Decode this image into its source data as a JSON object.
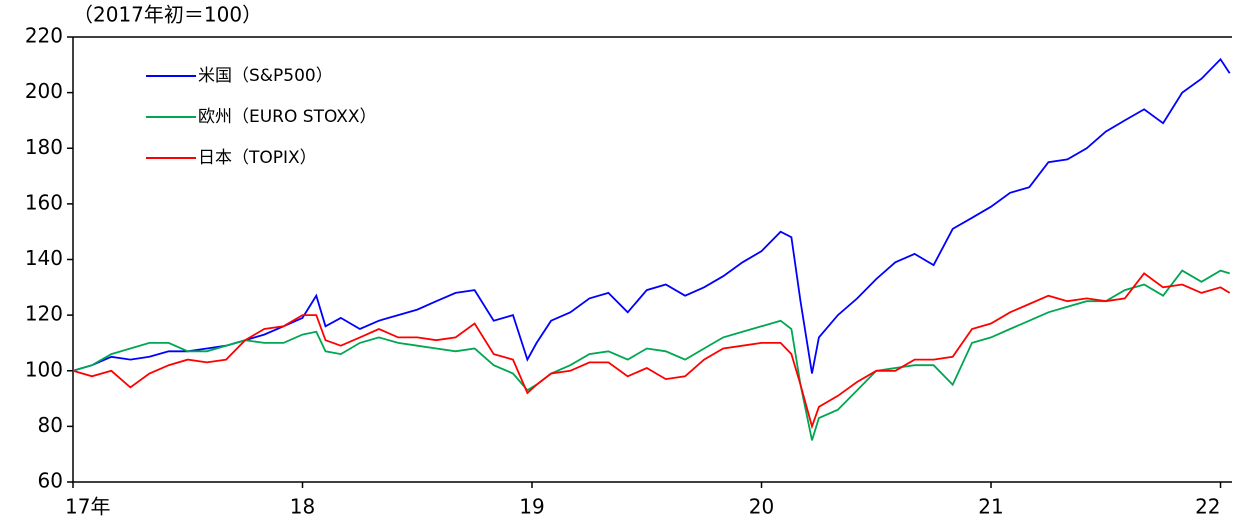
{
  "chart_data": {
    "type": "line",
    "y_axis_label": "（2017年初＝100）",
    "x": [
      17.0,
      17.083,
      17.167,
      17.25,
      17.333,
      17.417,
      17.5,
      17.583,
      17.667,
      17.75,
      17.833,
      17.917,
      18.0,
      18.06,
      18.1,
      18.167,
      18.25,
      18.333,
      18.417,
      18.5,
      18.583,
      18.667,
      18.75,
      18.833,
      18.917,
      18.98,
      19.02,
      19.083,
      19.167,
      19.25,
      19.333,
      19.417,
      19.5,
      19.583,
      19.667,
      19.75,
      19.833,
      19.917,
      20.0,
      20.083,
      20.13,
      20.17,
      20.22,
      20.25,
      20.333,
      20.417,
      20.5,
      20.583,
      20.667,
      20.75,
      20.833,
      20.917,
      21.0,
      21.083,
      21.167,
      21.25,
      21.333,
      21.417,
      21.5,
      21.583,
      21.667,
      21.75,
      21.833,
      21.917,
      22.0,
      22.04
    ],
    "series": [
      {
        "name": "米国（S&P500）",
        "color": "#0000ff",
        "values": [
          100,
          102,
          105,
          104,
          105,
          107,
          107,
          108,
          109,
          111,
          113,
          116,
          119,
          127,
          116,
          119,
          115,
          118,
          120,
          122,
          125,
          128,
          129,
          118,
          120,
          104,
          110,
          118,
          121,
          126,
          128,
          121,
          129,
          131,
          127,
          130,
          134,
          139,
          143,
          150,
          148,
          125,
          99,
          112,
          120,
          126,
          133,
          139,
          142,
          138,
          151,
          155,
          159,
          164,
          166,
          175,
          176,
          180,
          186,
          190,
          194,
          189,
          200,
          205,
          212,
          207
        ]
      },
      {
        "name": "欧州（EURO STOXX）",
        "color": "#00a651",
        "values": [
          100,
          102,
          106,
          108,
          110,
          110,
          107,
          107,
          109,
          111,
          110,
          110,
          113,
          114,
          107,
          106,
          110,
          112,
          110,
          109,
          108,
          107,
          108,
          102,
          99,
          93,
          95,
          99,
          102,
          106,
          107,
          104,
          108,
          107,
          104,
          108,
          112,
          114,
          116,
          118,
          115,
          95,
          75,
          83,
          86,
          93,
          100,
          101,
          102,
          102,
          95,
          110,
          112,
          115,
          118,
          121,
          123,
          125,
          125,
          129,
          131,
          127,
          136,
          132,
          136,
          135
        ]
      },
      {
        "name": "日本（TOPIX）",
        "color": "#ff0000",
        "values": [
          100,
          98,
          100,
          94,
          99,
          102,
          104,
          103,
          104,
          111,
          115,
          116,
          120,
          120,
          111,
          109,
          112,
          115,
          112,
          112,
          111,
          112,
          117,
          106,
          104,
          92,
          95,
          99,
          100,
          103,
          103,
          98,
          101,
          97,
          98,
          104,
          108,
          109,
          110,
          110,
          106,
          95,
          80,
          87,
          91,
          96,
          100,
          100,
          104,
          104,
          105,
          115,
          117,
          121,
          124,
          127,
          125,
          126,
          125,
          126,
          135,
          130,
          131,
          128,
          130,
          128
        ]
      }
    ],
    "xlim": [
      17,
      22.05
    ],
    "xticks": [
      {
        "value": 17,
        "label": "17年"
      },
      18,
      19,
      20,
      21,
      22
    ],
    "ylim": [
      60,
      220
    ],
    "yticks": [
      60,
      80,
      100,
      120,
      140,
      160,
      180,
      200,
      220
    ],
    "legend": "top-left"
  }
}
